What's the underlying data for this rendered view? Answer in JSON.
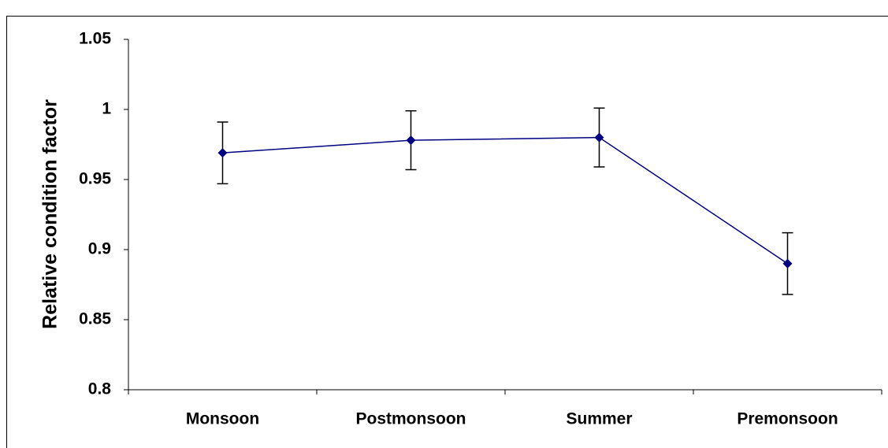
{
  "chart_data": {
    "type": "line",
    "y_label": "Relative condition factor",
    "categories": [
      "Monsoon",
      "Postmonsoon",
      "Summer",
      "Premonsoon"
    ],
    "values": [
      0.969,
      0.978,
      0.98,
      0.89
    ],
    "errors": [
      0.022,
      0.021,
      0.021,
      0.022
    ],
    "color": "#000080",
    "error_color": "#000000",
    "ylim": [
      0.8,
      1.05
    ],
    "yticks": [
      0.8,
      0.85,
      0.9,
      0.95,
      1,
      1.05
    ],
    "grid": false
  }
}
